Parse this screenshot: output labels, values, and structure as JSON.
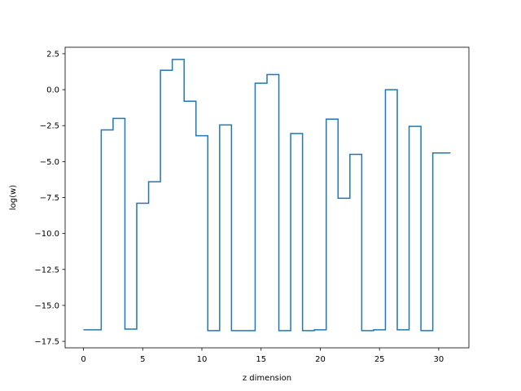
{
  "chart_data": {
    "type": "line",
    "drawstyle": "steps-mid",
    "xlabel": "z dimension",
    "ylabel": "log(w)",
    "xlim": [
      -1.55,
      32.55
    ],
    "ylim": [
      -17.95,
      2.95
    ],
    "xticks": [
      0,
      5,
      10,
      15,
      20,
      25,
      30
    ],
    "xtick_labels": [
      "0",
      "5",
      "10",
      "15",
      "20",
      "25",
      "30"
    ],
    "yticks": [
      2.5,
      0.0,
      -2.5,
      -5.0,
      -7.5,
      -10.0,
      -12.5,
      -15.0,
      -17.5
    ],
    "ytick_labels": [
      "2.5",
      "0.0",
      "−2.5",
      "−5.0",
      "−7.5",
      "−10.0",
      "−12.5",
      "−15.0",
      "−17.5"
    ],
    "grid": false,
    "series": [
      {
        "color": "#1f77b4",
        "x": [
          0,
          1,
          2,
          3,
          4,
          5,
          6,
          7,
          8,
          9,
          10,
          11,
          12,
          13,
          14,
          15,
          16,
          17,
          18,
          19,
          20,
          21,
          22,
          23,
          24,
          25,
          26,
          27,
          28,
          29,
          30,
          31
        ],
        "y": [
          -16.7,
          -16.7,
          -2.8,
          -2.0,
          -16.65,
          -7.9,
          -6.4,
          1.35,
          2.1,
          -0.8,
          -3.2,
          -16.75,
          -2.45,
          -16.75,
          -16.75,
          0.45,
          1.05,
          -16.75,
          -3.05,
          -16.75,
          -16.7,
          -2.05,
          -7.55,
          -4.5,
          -16.75,
          -16.7,
          0.0,
          -16.7,
          -2.55,
          -16.75,
          -4.4,
          -4.4
        ]
      }
    ]
  }
}
